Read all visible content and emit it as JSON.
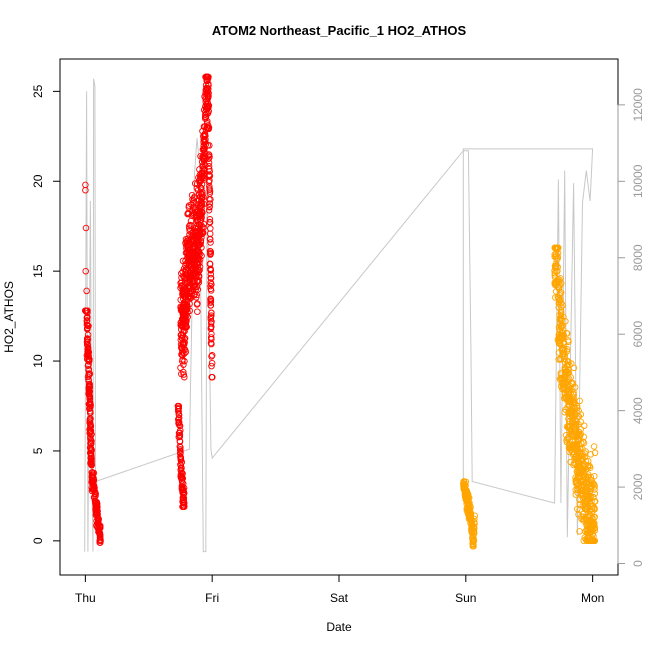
{
  "chart_data": {
    "type": "scatter",
    "title": "ATOM2 Northeast_Pacific_1 HO2_ATHOS",
    "xlabel": "Date",
    "ylabel": "HO2_ATHOS",
    "x_unit": "days since first tick (Thu 00:00)",
    "x_ticks": [
      {
        "value": 0,
        "label": "Thu"
      },
      {
        "value": 1,
        "label": "Fri"
      },
      {
        "value": 2,
        "label": "Sat"
      },
      {
        "value": 3,
        "label": "Sun"
      },
      {
        "value": 4,
        "label": "Mon"
      }
    ],
    "xlim": [
      -0.2,
      4.2
    ],
    "ylim": [
      -1.9,
      26.8
    ],
    "y_ticks": [
      0,
      5,
      10,
      15,
      20,
      25
    ],
    "y2lim": [
      -300,
      13200
    ],
    "y2_ticks": [
      0,
      2000,
      4000,
      6000,
      8000,
      10000,
      12000
    ],
    "grid": false,
    "legend": "none",
    "series": [
      {
        "color": "#ff0000",
        "marker": "open-circle",
        "clusters": [
          {
            "x_start": 0.0,
            "x_end": 0.05,
            "points": [
              [
                0.0,
                19.8
              ],
              [
                0.0,
                19.5
              ],
              [
                0.005,
                17.4
              ],
              [
                0.003,
                15.0
              ],
              [
                0.01,
                13.9
              ],
              [
                0.012,
                12.4
              ],
              [
                0.015,
                11.8
              ],
              [
                0.02,
                11.2
              ],
              [
                0.022,
                10.5
              ],
              [
                0.025,
                9.8
              ],
              [
                0.027,
                9.2
              ],
              [
                0.03,
                8.7
              ],
              [
                0.032,
                8.1
              ],
              [
                0.035,
                7.4
              ],
              [
                0.038,
                6.8
              ],
              [
                0.04,
                6.2
              ],
              [
                0.042,
                5.6
              ],
              [
                0.045,
                5.0
              ],
              [
                0.048,
                4.6
              ],
              [
                0.05,
                4.2
              ]
            ],
            "y_band": [
              3.0,
              12.8
            ],
            "n": 180
          },
          {
            "x_start": 0.05,
            "x_end": 0.12,
            "points": [
              [
                0.06,
                3.5
              ],
              [
                0.07,
                2.8
              ],
              [
                0.08,
                2.2
              ],
              [
                0.09,
                1.6
              ],
              [
                0.1,
                1.2
              ],
              [
                0.11,
                0.8
              ],
              [
                0.115,
                0.4
              ],
              [
                0.12,
                0.0
              ]
            ],
            "y_band": [
              -0.1,
              3.8
            ],
            "n": 120
          },
          {
            "x_start": 0.73,
            "x_end": 0.78,
            "points": [
              [
                0.73,
                7.5
              ],
              [
                0.74,
                6.6
              ],
              [
                0.745,
                5.8
              ],
              [
                0.75,
                4.9
              ],
              [
                0.76,
                3.8
              ],
              [
                0.765,
                2.9
              ],
              [
                0.77,
                2.4
              ],
              [
                0.775,
                2.1
              ],
              [
                0.78,
                1.9
              ]
            ],
            "y_band": [
              1.9,
              7.6
            ],
            "n": 90
          },
          {
            "x_start": 0.75,
            "x_end": 1.0,
            "points": [
              [
                0.78,
                12.2
              ],
              [
                0.8,
                14.6
              ],
              [
                0.82,
                15.4
              ],
              [
                0.85,
                16.2
              ],
              [
                0.88,
                15.8
              ],
              [
                0.9,
                17.3
              ],
              [
                0.92,
                19.2
              ],
              [
                0.94,
                21.6
              ],
              [
                0.95,
                24.4
              ],
              [
                0.96,
                25.8
              ],
              [
                0.97,
                24.1
              ],
              [
                0.98,
                19.6
              ],
              [
                0.99,
                13.1
              ],
              [
                1.0,
                9.1
              ]
            ],
            "y_band": [
              9.1,
              25.8
            ],
            "n": 700
          }
        ]
      },
      {
        "color": "#ffa500",
        "marker": "open-circle",
        "clusters": [
          {
            "x_start": 2.98,
            "x_end": 3.07,
            "points": [
              [
                2.98,
                3.2
              ],
              [
                3.0,
                2.6
              ],
              [
                3.02,
                1.9
              ],
              [
                3.04,
                1.2
              ],
              [
                3.05,
                0.6
              ],
              [
                3.06,
                -0.2
              ],
              [
                3.07,
                1.4
              ]
            ],
            "y_band": [
              -0.3,
              3.3
            ],
            "n": 140
          },
          {
            "x_start": 3.7,
            "x_end": 4.02,
            "points": [
              [
                3.72,
                16.2
              ],
              [
                3.73,
                13.5
              ],
              [
                3.75,
                11.2
              ],
              [
                3.78,
                9.6
              ],
              [
                3.8,
                8.4
              ],
              [
                3.82,
                7.1
              ],
              [
                3.85,
                6.2
              ],
              [
                3.88,
                5.1
              ],
              [
                3.9,
                4.2
              ],
              [
                3.92,
                3.3
              ],
              [
                3.95,
                2.5
              ],
              [
                3.98,
                1.7
              ],
              [
                4.0,
                0.9
              ],
              [
                4.02,
                2.2
              ]
            ],
            "y_band": [
              0.0,
              16.3
            ],
            "n": 650
          }
        ]
      },
      {
        "name": "",
        "color": "#c8c8c8",
        "type": "line",
        "axis": "right",
        "points": [
          [
            -0.005,
            -0.6
          ],
          [
            0.01,
            25.0
          ],
          [
            0.02,
            -0.6
          ],
          [
            0.04,
            18.9
          ],
          [
            0.05,
            4.7
          ],
          [
            0.06,
            -0.6
          ],
          [
            0.065,
            25.7
          ],
          [
            0.075,
            25.3
          ],
          [
            0.08,
            3.3
          ],
          [
            0.82,
            5.1
          ],
          [
            0.86,
            20.3
          ],
          [
            0.88,
            22.4
          ],
          [
            0.9,
            21.0
          ],
          [
            0.93,
            -0.6
          ],
          [
            0.95,
            -0.6
          ],
          [
            0.96,
            20.6
          ],
          [
            0.99,
            5.1
          ],
          [
            1.0,
            4.6
          ],
          [
            2.98,
            21.7
          ],
          [
            3.02,
            21.7
          ],
          [
            3.04,
            10.8
          ],
          [
            3.05,
            3.3
          ],
          [
            3.7,
            2.1
          ],
          [
            3.73,
            20.1
          ],
          [
            3.75,
            2.1
          ],
          [
            3.78,
            20.6
          ],
          [
            3.8,
            0.2
          ],
          [
            3.85,
            19.9
          ],
          [
            3.88,
            0.3
          ],
          [
            3.92,
            18.8
          ],
          [
            3.95,
            20.6
          ],
          [
            3.98,
            18.9
          ],
          [
            4.0,
            21.8
          ],
          [
            3.0,
            21.8
          ],
          [
            2.98,
            21.8
          ],
          [
            2.98,
            3.3
          ]
        ]
      }
    ]
  }
}
